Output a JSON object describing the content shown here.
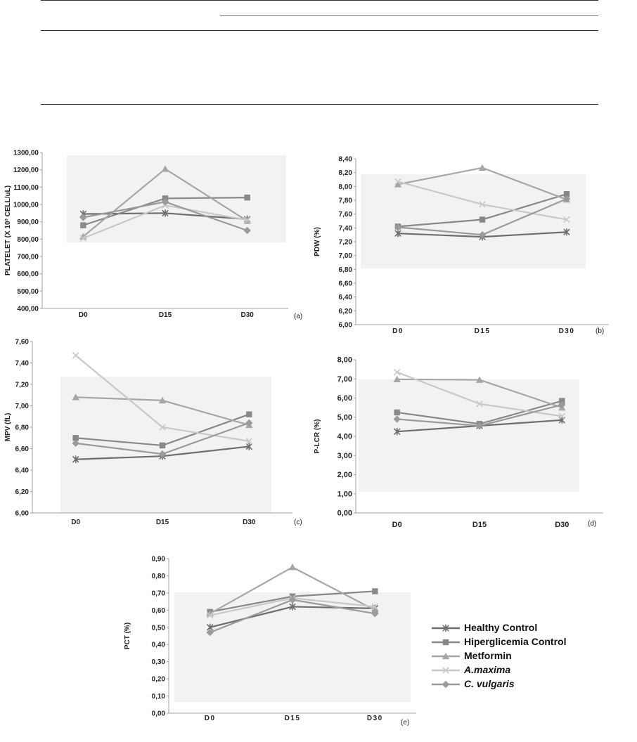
{
  "colors": {
    "healthy": "#6e6e6e",
    "hiper": "#888888",
    "metformin": "#a6a6a6",
    "amaxima": "#c8c8c8",
    "cvulgaris": "#9a9a9a",
    "plot_bg": "#f2f2f2",
    "axis": "#a0a0a0"
  },
  "legend": [
    {
      "label": "Healthy Control",
      "marker": "star",
      "color_key": "healthy",
      "italic": false
    },
    {
      "label": "Hiperglicemia Control",
      "marker": "square",
      "color_key": "hiper",
      "italic": false
    },
    {
      "label": "Metformin",
      "marker": "triangle",
      "color_key": "metformin",
      "italic": false
    },
    {
      "label": "A.maxima",
      "marker": "x",
      "color_key": "amaxima",
      "italic": true
    },
    {
      "label": "C. vulgaris",
      "marker": "diamond",
      "color_key": "cvulgaris",
      "italic": true
    }
  ],
  "chart_data": [
    {
      "id": "a",
      "type": "line",
      "panel_label": "(a)",
      "ylabel": "PLATELET (X 10³ CELL/uL)",
      "categories": [
        "D0",
        "D15",
        "D30"
      ],
      "ylim": [
        400,
        1300
      ],
      "yticks": [
        "400,00",
        "500,00",
        "600,00",
        "700,00",
        "800,00",
        "900,00",
        "1000,00",
        "1100,00",
        "1200,00",
        "1300,00"
      ],
      "series": [
        {
          "name": "Healthy Control",
          "values": [
            945,
            950,
            915
          ]
        },
        {
          "name": "Hiperglicemia Control",
          "values": [
            880,
            1035,
            1040
          ]
        },
        {
          "name": "Metformin",
          "values": [
            815,
            1205,
            905
          ]
        },
        {
          "name": "A.maxima",
          "values": [
            805,
            995,
            910
          ]
        },
        {
          "name": "C. vulgaris",
          "values": [
            925,
            1015,
            850
          ]
        }
      ]
    },
    {
      "id": "b",
      "type": "line",
      "panel_label": "(b)",
      "ylabel": "PDW (%)",
      "categories": [
        "D0",
        "D15",
        "D30"
      ],
      "ylim": [
        6.0,
        8.4
      ],
      "yticks": [
        "6,00",
        "6,20",
        "6,40",
        "6,60",
        "6,80",
        "7,00",
        "7,20",
        "7,40",
        "7,60",
        "7,80",
        "8,00",
        "8,20",
        "8,40"
      ],
      "series": [
        {
          "name": "Healthy Control",
          "values": [
            7.32,
            7.27,
            7.34
          ]
        },
        {
          "name": "Hiperglicemia Control",
          "values": [
            7.42,
            7.52,
            7.89
          ]
        },
        {
          "name": "Metformin",
          "values": [
            8.03,
            8.27,
            7.81
          ]
        },
        {
          "name": "A.maxima",
          "values": [
            8.07,
            7.74,
            7.52
          ]
        },
        {
          "name": "C. vulgaris",
          "values": [
            7.41,
            7.3,
            7.82
          ]
        }
      ]
    },
    {
      "id": "c",
      "type": "line",
      "panel_label": "(c)",
      "ylabel": "MPV (fL)",
      "categories": [
        "D0",
        "D15",
        "D30"
      ],
      "ylim": [
        6.0,
        7.6
      ],
      "yticks": [
        "6,00",
        "6,20",
        "6,40",
        "6,60",
        "6,80",
        "7,00",
        "7,20",
        "7,40",
        "7,60"
      ],
      "series": [
        {
          "name": "Healthy Control",
          "values": [
            6.5,
            6.53,
            6.62
          ]
        },
        {
          "name": "Hiperglicemia Control",
          "values": [
            6.7,
            6.63,
            6.92
          ]
        },
        {
          "name": "Metformin",
          "values": [
            7.08,
            7.05,
            6.82
          ]
        },
        {
          "name": "A.maxima",
          "values": [
            7.47,
            6.8,
            6.67
          ]
        },
        {
          "name": "C. vulgaris",
          "values": [
            6.65,
            6.55,
            6.84
          ]
        }
      ]
    },
    {
      "id": "d",
      "type": "line",
      "panel_label": "(d)",
      "ylabel": "P-LCR (%)",
      "categories": [
        "D0",
        "D15",
        "D30"
      ],
      "ylim": [
        0,
        8
      ],
      "yticks": [
        "0,00",
        "1,00",
        "2,00",
        "3,00",
        "4,00",
        "5,00",
        "6,00",
        "7,00",
        "8,00"
      ],
      "series": [
        {
          "name": "Healthy Control",
          "values": [
            4.25,
            4.55,
            4.85
          ]
        },
        {
          "name": "Hiperglicemia Control",
          "values": [
            5.25,
            4.65,
            5.85
          ]
        },
        {
          "name": "Metformin",
          "values": [
            6.98,
            6.95,
            5.5
          ]
        },
        {
          "name": "A.maxima",
          "values": [
            7.35,
            5.7,
            5.05
          ]
        },
        {
          "name": "C. vulgaris",
          "values": [
            4.9,
            4.55,
            5.65
          ]
        }
      ]
    },
    {
      "id": "e",
      "type": "line",
      "panel_label": "(e)",
      "ylabel": "PCT (%)",
      "categories": [
        "D0",
        "D15",
        "D30"
      ],
      "ylim": [
        0,
        0.9
      ],
      "yticks": [
        "0,00",
        "0,10",
        "0,20",
        "0,30",
        "0,40",
        "0,50",
        "0,60",
        "0,70",
        "0,80",
        "0,90"
      ],
      "series": [
        {
          "name": "Healthy Control",
          "values": [
            0.5,
            0.62,
            0.61
          ]
        },
        {
          "name": "Hiperglicemia Control",
          "values": [
            0.59,
            0.68,
            0.71
          ]
        },
        {
          "name": "Metformin",
          "values": [
            0.58,
            0.85,
            0.6
          ]
        },
        {
          "name": "A.maxima",
          "values": [
            0.57,
            0.67,
            0.62
          ]
        },
        {
          "name": "C. vulgaris",
          "values": [
            0.47,
            0.66,
            0.58
          ]
        }
      ]
    }
  ]
}
